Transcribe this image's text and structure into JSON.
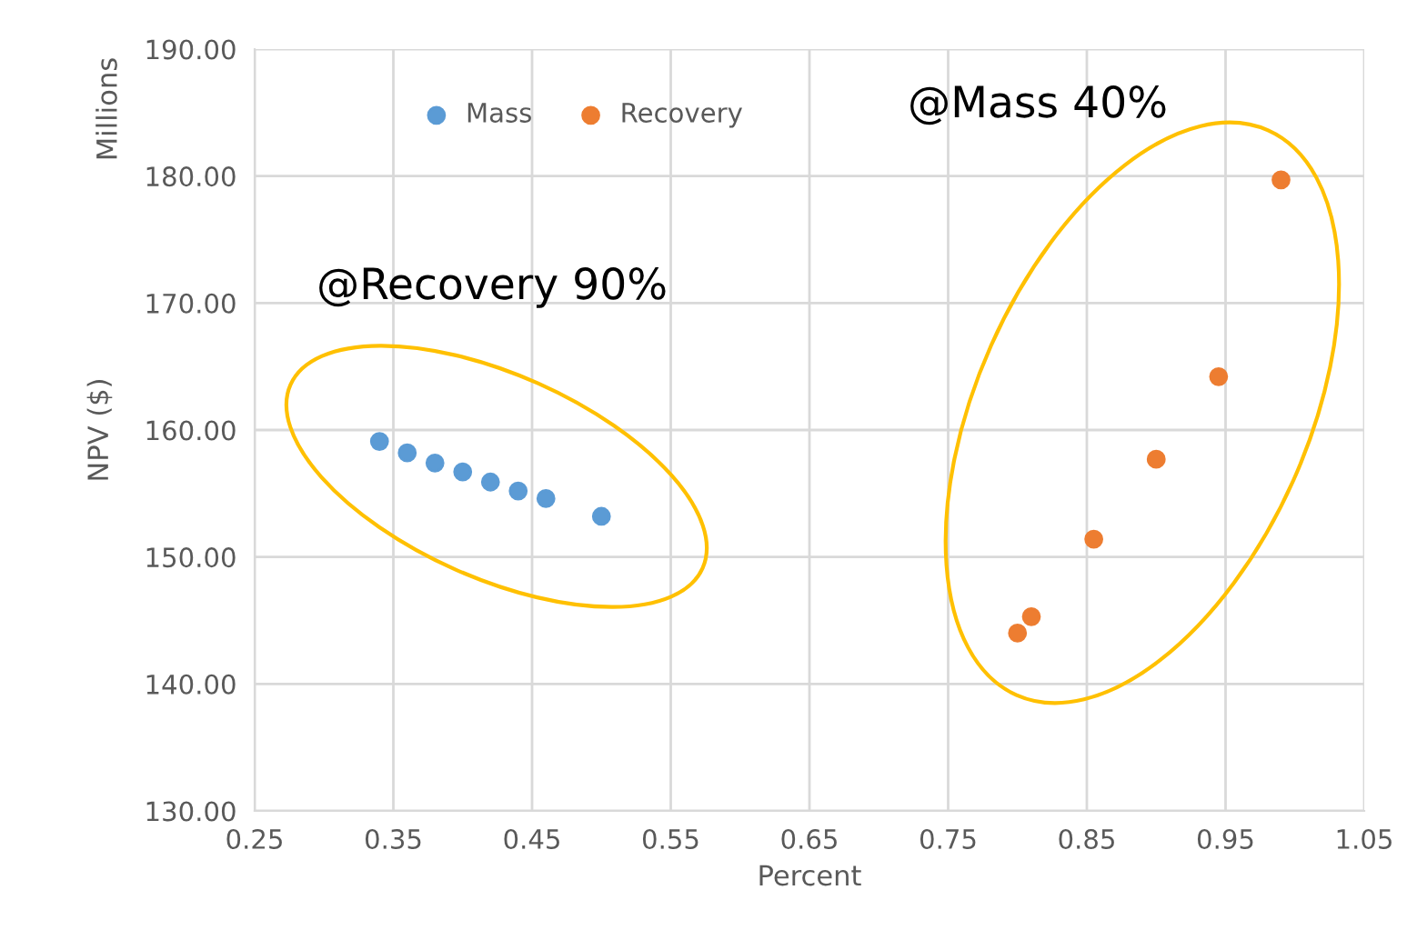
{
  "chart_data": {
    "type": "scatter",
    "xlabel": "Percent",
    "ylabel": "NPV ($)",
    "annotations": [
      "Millions",
      "@Recovery 90%",
      "@Mass 40%"
    ],
    "series": [
      {
        "name": "Mass",
        "color": "#5b9bd5",
        "x": [
          0.34,
          0.36,
          0.38,
          0.4,
          0.42,
          0.44,
          0.46,
          0.5
        ],
        "values": [
          159.1,
          158.2,
          157.4,
          156.7,
          155.9,
          155.2,
          154.6,
          153.2
        ]
      },
      {
        "name": "Recovery",
        "color": "#ed7d31",
        "x": [
          0.8,
          0.81,
          0.855,
          0.9,
          0.945,
          0.99
        ],
        "values": [
          144.0,
          145.3,
          151.4,
          157.7,
          164.2,
          179.7
        ]
      }
    ],
    "xlim": [
      0.25,
      1.05
    ],
    "xticks": [
      0.25,
      0.35,
      0.45,
      0.55,
      0.65,
      0.75,
      0.85,
      0.95,
      1.05
    ],
    "ylim": [
      130,
      190
    ],
    "yticks": [
      {
        "value": 130,
        "label": "130.00"
      },
      {
        "value": 140,
        "label": "140.00"
      },
      {
        "value": 150,
        "label": "150.00"
      },
      {
        "value": 160,
        "label": "160.00"
      },
      {
        "value": 170,
        "label": "170.00"
      },
      {
        "value": 180,
        "label": "180.00"
      },
      {
        "value": 190,
        "label": "190.00"
      }
    ],
    "grid": true,
    "legend": "top",
    "marker": "circle"
  }
}
